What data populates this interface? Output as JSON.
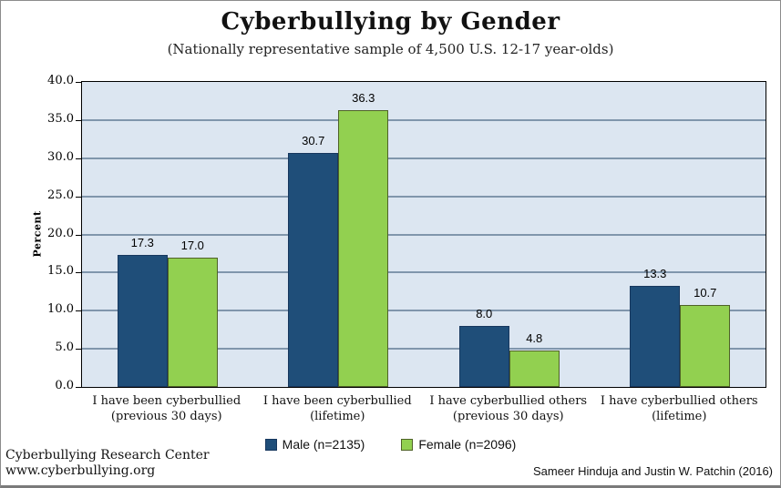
{
  "header": {
    "title": "Cyberbullying by Gender",
    "subtitle": "(Nationally representative sample of 4,500 U.S. 12-17 year-olds)"
  },
  "chart_data": {
    "type": "bar",
    "title": "Cyberbullying by Gender",
    "subtitle": "(Nationally representative sample of 4,500 U.S. 12-17 year-olds)",
    "categories": [
      "I have been cyberbullied\n(previous 30 days)",
      "I have been cyberbullied\n(lifetime)",
      "I have cyberbullied others\n(previous 30 days)",
      "I have cyberbullied others\n(lifetime)"
    ],
    "series": [
      {
        "name": "Male (n=2135)",
        "color": "#1f4e79",
        "border_color": "#17375e",
        "values": [
          17.3,
          30.7,
          8.0,
          13.3
        ]
      },
      {
        "name": "Female (n=2096)",
        "color": "#92d050",
        "border_color": "#4f6228",
        "values": [
          17.0,
          36.3,
          4.8,
          10.7
        ]
      }
    ],
    "xlabel": "",
    "ylabel": "Percent",
    "ylim": [
      0,
      40
    ],
    "ytick_step": 5,
    "ytick_format_decimals": 1,
    "grid": true,
    "legend_position": "bottom",
    "plot_background": "#dce6f1",
    "gridline_color": "#8096ac",
    "data_labels": true
  },
  "footer": {
    "left_line1": "Cyberbullying Research Center",
    "left_line2": "www.cyberbullying.org",
    "right": "Sameer Hinduja and Justin W. Patchin (2016)"
  }
}
